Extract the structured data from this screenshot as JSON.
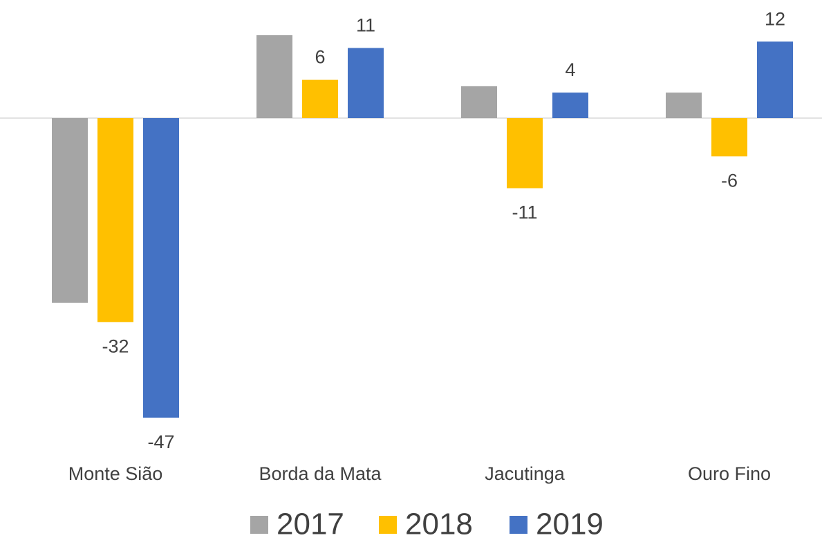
{
  "chart_data": {
    "type": "bar",
    "categories": [
      "Monte Sião",
      "Borda da Mata",
      "Jacutinga",
      "Ouro Fino"
    ],
    "series": [
      {
        "name": "2017",
        "color": "#a5a5a5",
        "values": [
          -29,
          13,
          5,
          4
        ],
        "data_labels": false
      },
      {
        "name": "2018",
        "color": "#ffc000",
        "values": [
          -32,
          6,
          -11,
          -6
        ],
        "data_labels": true
      },
      {
        "name": "2019",
        "color": "#4472c4",
        "values": [
          -47,
          11,
          4,
          12
        ],
        "data_labels": true
      }
    ],
    "legend": "bottom"
  }
}
